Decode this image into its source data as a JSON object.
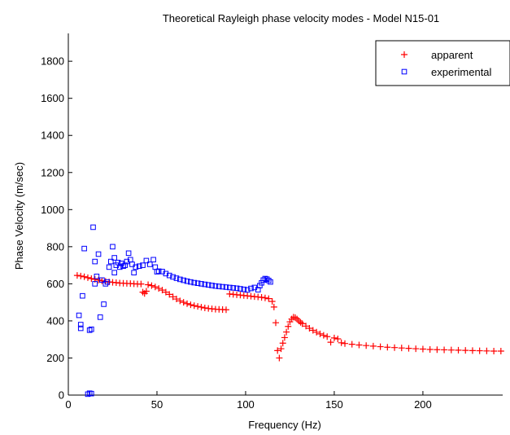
{
  "chart_data": {
    "type": "scatter",
    "title": "Theoretical Rayleigh phase velocity modes - Model N15-01",
    "xlabel": "Frequency (Hz)",
    "ylabel": "Phase Velocity (m/sec)",
    "xlim": [
      0,
      245
    ],
    "ylim": [
      0,
      1950
    ],
    "xticks": [
      0,
      50,
      100,
      150,
      200
    ],
    "yticks": [
      0,
      200,
      400,
      600,
      800,
      1000,
      1200,
      1400,
      1600,
      1800
    ],
    "grid": false,
    "legend_position": "top-right",
    "series": [
      {
        "name": "apparent",
        "marker": "plus",
        "color": "#ff0000",
        "points": [
          [
            5,
            645
          ],
          [
            7,
            642
          ],
          [
            9,
            638
          ],
          [
            11,
            633
          ],
          [
            13,
            628
          ],
          [
            15,
            624
          ],
          [
            17,
            620
          ],
          [
            19,
            616
          ],
          [
            21,
            613
          ],
          [
            23,
            610
          ],
          [
            25,
            608
          ],
          [
            27,
            606
          ],
          [
            29,
            604
          ],
          [
            31,
            603
          ],
          [
            33,
            602
          ],
          [
            35,
            601
          ],
          [
            37,
            600
          ],
          [
            39,
            599
          ],
          [
            41,
            599
          ],
          [
            42,
            555
          ],
          [
            43,
            548
          ],
          [
            44,
            560
          ],
          [
            45,
            595
          ],
          [
            47,
            590
          ],
          [
            49,
            583
          ],
          [
            51,
            575
          ],
          [
            53,
            566
          ],
          [
            55,
            555
          ],
          [
            57,
            543
          ],
          [
            59,
            530
          ],
          [
            61,
            518
          ],
          [
            63,
            508
          ],
          [
            65,
            500
          ],
          [
            67,
            493
          ],
          [
            69,
            487
          ],
          [
            71,
            482
          ],
          [
            73,
            478
          ],
          [
            75,
            474
          ],
          [
            77,
            470
          ],
          [
            79,
            467
          ],
          [
            81,
            465
          ],
          [
            83,
            463
          ],
          [
            85,
            462
          ],
          [
            87,
            461
          ],
          [
            89,
            460
          ],
          [
            91,
            545
          ],
          [
            93,
            543
          ],
          [
            95,
            541
          ],
          [
            97,
            539
          ],
          [
            99,
            537
          ],
          [
            101,
            535
          ],
          [
            103,
            533
          ],
          [
            105,
            531
          ],
          [
            107,
            529
          ],
          [
            109,
            527
          ],
          [
            111,
            524
          ],
          [
            113,
            520
          ],
          [
            115,
            505
          ],
          [
            116,
            475
          ],
          [
            117,
            390
          ],
          [
            118,
            240
          ],
          [
            119,
            200
          ],
          [
            120,
            250
          ],
          [
            121,
            280
          ],
          [
            122,
            310
          ],
          [
            123,
            340
          ],
          [
            124,
            370
          ],
          [
            125,
            395
          ],
          [
            126,
            410
          ],
          [
            127,
            420
          ],
          [
            128,
            418
          ],
          [
            129,
            410
          ],
          [
            130,
            400
          ],
          [
            131,
            392
          ],
          [
            132,
            385
          ],
          [
            134,
            372
          ],
          [
            136,
            360
          ],
          [
            138,
            349
          ],
          [
            140,
            339
          ],
          [
            142,
            330
          ],
          [
            144,
            322
          ],
          [
            146,
            315
          ],
          [
            148,
            285
          ],
          [
            150,
            308
          ],
          [
            152,
            303
          ],
          [
            154,
            282
          ],
          [
            156,
            278
          ],
          [
            160,
            274
          ],
          [
            164,
            270
          ],
          [
            168,
            267
          ],
          [
            172,
            264
          ],
          [
            176,
            261
          ],
          [
            180,
            258
          ],
          [
            184,
            256
          ],
          [
            188,
            254
          ],
          [
            192,
            252
          ],
          [
            196,
            250
          ],
          [
            200,
            248
          ],
          [
            204,
            246
          ],
          [
            208,
            245
          ],
          [
            212,
            244
          ],
          [
            216,
            243
          ],
          [
            220,
            242
          ],
          [
            224,
            241
          ],
          [
            228,
            240
          ],
          [
            232,
            239
          ],
          [
            236,
            238
          ],
          [
            240,
            237
          ],
          [
            244,
            237
          ]
        ]
      },
      {
        "name": "experimental",
        "marker": "square",
        "color": "#0000ff",
        "points": [
          [
            6,
            430
          ],
          [
            7,
            380
          ],
          [
            7,
            360
          ],
          [
            8,
            535
          ],
          [
            9,
            790
          ],
          [
            11,
            5
          ],
          [
            12,
            10
          ],
          [
            12,
            350
          ],
          [
            13,
            8
          ],
          [
            13,
            355
          ],
          [
            14,
            905
          ],
          [
            15,
            600
          ],
          [
            15,
            720
          ],
          [
            16,
            640
          ],
          [
            17,
            760
          ],
          [
            18,
            420
          ],
          [
            19,
            620
          ],
          [
            20,
            490
          ],
          [
            21,
            600
          ],
          [
            22,
            610
          ],
          [
            23,
            690
          ],
          [
            24,
            720
          ],
          [
            25,
            800
          ],
          [
            26,
            660
          ],
          [
            26,
            740
          ],
          [
            27,
            700
          ],
          [
            28,
            715
          ],
          [
            29,
            690
          ],
          [
            30,
            710
          ],
          [
            31,
            695
          ],
          [
            32,
            700
          ],
          [
            33,
            720
          ],
          [
            34,
            765
          ],
          [
            35,
            730
          ],
          [
            36,
            705
          ],
          [
            37,
            660
          ],
          [
            38,
            690
          ],
          [
            40,
            695
          ],
          [
            42,
            700
          ],
          [
            44,
            725
          ],
          [
            46,
            705
          ],
          [
            48,
            730
          ],
          [
            49,
            690
          ],
          [
            50,
            665
          ],
          [
            51,
            668
          ],
          [
            53,
            666
          ],
          [
            55,
            655
          ],
          [
            57,
            645
          ],
          [
            59,
            637
          ],
          [
            61,
            630
          ],
          [
            63,
            624
          ],
          [
            65,
            619
          ],
          [
            67,
            614
          ],
          [
            69,
            610
          ],
          [
            71,
            606
          ],
          [
            73,
            603
          ],
          [
            75,
            600
          ],
          [
            77,
            597
          ],
          [
            79,
            594
          ],
          [
            81,
            591
          ],
          [
            83,
            588
          ],
          [
            85,
            586
          ],
          [
            87,
            584
          ],
          [
            89,
            582
          ],
          [
            91,
            580
          ],
          [
            93,
            578
          ],
          [
            95,
            576
          ],
          [
            97,
            573
          ],
          [
            99,
            570
          ],
          [
            101,
            567
          ],
          [
            103,
            575
          ],
          [
            105,
            580
          ],
          [
            107,
            568
          ],
          [
            108,
            590
          ],
          [
            109,
            605
          ],
          [
            110,
            620
          ],
          [
            111,
            628
          ],
          [
            112,
            625
          ],
          [
            113,
            618
          ],
          [
            114,
            610
          ]
        ]
      }
    ]
  }
}
